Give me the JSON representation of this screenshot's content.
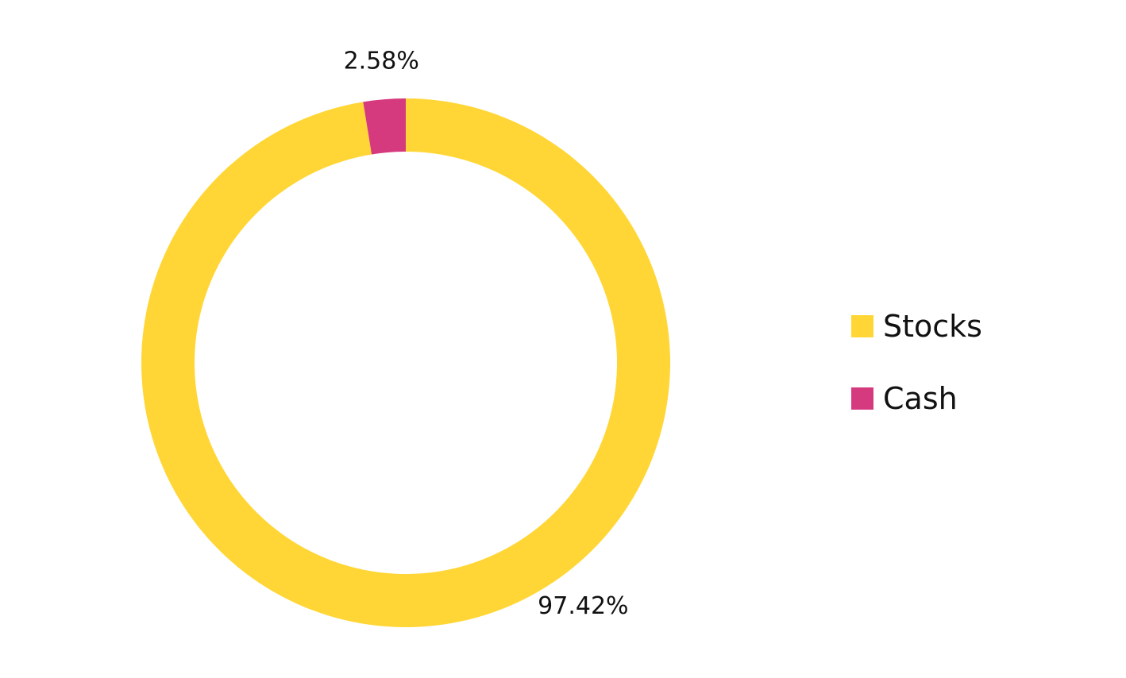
{
  "chart_data": {
    "type": "pie",
    "variant": "donut",
    "title": "",
    "categories": [
      "Stocks",
      "Cash"
    ],
    "values": [
      97.42,
      2.58
    ],
    "value_labels": [
      "97.42%",
      "2.58%"
    ],
    "unit": "%",
    "colors": [
      "#FFD635",
      "#D63A7E"
    ],
    "legend": {
      "placement": "right",
      "entries": [
        "Stocks",
        "Cash"
      ]
    }
  }
}
